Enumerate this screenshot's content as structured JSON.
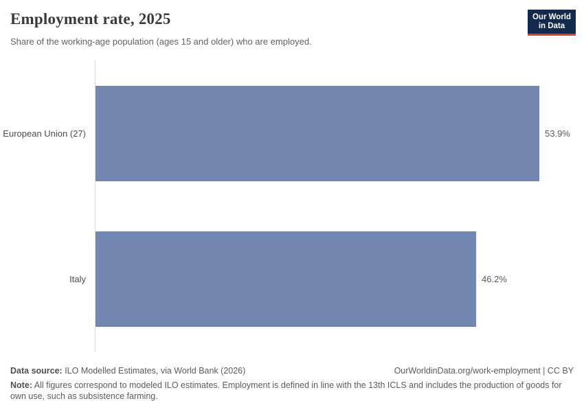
{
  "header": {
    "title": "Employment rate, 2025",
    "subtitle": "Share of the working-age population (ages 15 and older) who are employed.",
    "logo_line1": "Our World",
    "logo_line2": "in Data"
  },
  "chart_data": {
    "type": "bar",
    "orientation": "horizontal",
    "title": "Employment rate, 2025",
    "categories": [
      "European Union (27)",
      "Italy"
    ],
    "values": [
      53.9,
      46.2
    ],
    "value_labels": [
      "53.9%",
      "46.2%"
    ],
    "xlabel": "",
    "ylabel": "",
    "xlim": [
      0,
      53.9
    ],
    "grid": false,
    "legend": false,
    "bar_color": "#7286b2"
  },
  "footer": {
    "datasource_label": "Data source:",
    "datasource_text": " ILO Modelled Estimates, via World Bank (2026)",
    "link_text": "OurWorldinData.org/work-employment | CC BY",
    "note_label": "Note:",
    "note_text": " All figures correspond to modeled ILO estimates. Employment is defined in line with the 13th ICLS and includes the production of goods for own use, such as subsistence farming."
  },
  "colors": {
    "bar": "#7286b2",
    "logo_background": "#132a4d",
    "logo_accent": "#dc3e32",
    "axis_line": "#dcdcdc",
    "title_text": "#3a3a3a",
    "muted_text": "#5b5b5b"
  }
}
